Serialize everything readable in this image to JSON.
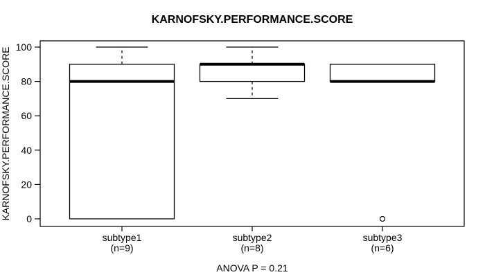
{
  "chart_data": {
    "type": "boxplot",
    "title": "KARNOFSKY.PERFORMANCE.SCORE",
    "ylabel": "KARNOFSKY.PERFORMANCE.SCORE",
    "xlabel": "",
    "annotation": "ANOVA P = 0.21",
    "ylim": [
      0,
      100
    ],
    "yticks": [
      0,
      20,
      40,
      60,
      80,
      100
    ],
    "grid": "off",
    "colors": {
      "stroke": "#000000",
      "box_fill": "#ffffff",
      "background": "#ffffff"
    },
    "groups": [
      {
        "label": "subtype1",
        "count_label": "(n=9)",
        "n": 9,
        "median": 80,
        "q1": 0,
        "q3": 90,
        "whisker_low": 0,
        "whisker_high": 100,
        "outliers": []
      },
      {
        "label": "subtype2",
        "count_label": "(n=8)",
        "n": 8,
        "median": 90,
        "q1": 80,
        "q3": 90,
        "whisker_low": 70,
        "whisker_high": 100,
        "outliers": []
      },
      {
        "label": "subtype3",
        "count_label": "(n=6)",
        "n": 6,
        "median": 80,
        "q1": 80,
        "q3": 90,
        "whisker_low": 80,
        "whisker_high": 90,
        "outliers": [
          0
        ]
      }
    ]
  }
}
